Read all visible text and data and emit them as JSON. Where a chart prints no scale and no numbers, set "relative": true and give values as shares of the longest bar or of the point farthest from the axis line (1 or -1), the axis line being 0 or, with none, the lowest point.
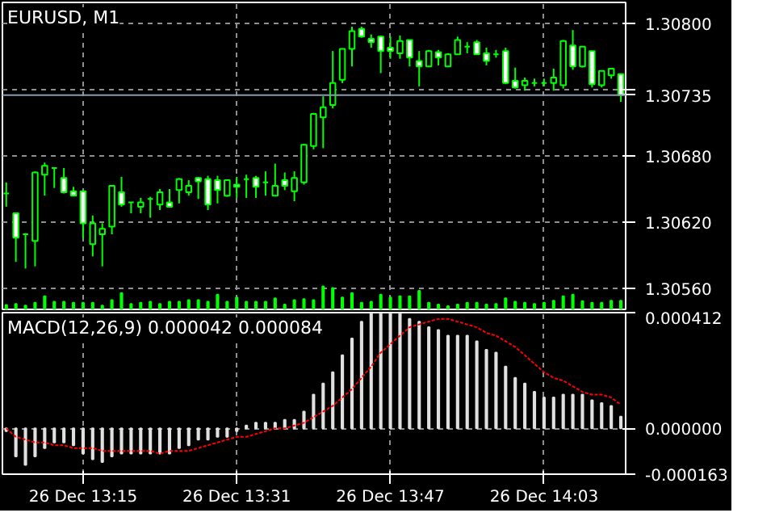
{
  "chart_data": [
    {
      "type": "candlestick",
      "title": "EURUSD, M1",
      "color": "#00ff00",
      "ohlc": [
        [
          1.30646,
          1.30656,
          1.30634,
          1.30646
        ],
        [
          1.30628,
          1.30628,
          1.30584,
          1.30606
        ],
        [
          1.30609,
          1.3061,
          1.30578,
          1.30609
        ],
        [
          1.30603,
          1.30666,
          1.3058,
          1.30665
        ],
        [
          1.30663,
          1.30674,
          1.30644,
          1.30671
        ],
        [
          1.30669,
          1.30669,
          1.30651,
          1.30669
        ],
        [
          1.3066,
          1.30669,
          1.30646,
          1.30647
        ],
        [
          1.30648,
          1.30652,
          1.30644,
          1.30644
        ],
        [
          1.30648,
          1.30649,
          1.30605,
          1.30619
        ],
        [
          1.306,
          1.30626,
          1.30589,
          1.30619
        ],
        [
          1.30609,
          1.30619,
          1.3058,
          1.30614
        ],
        [
          1.30616,
          1.30653,
          1.30609,
          1.30653
        ],
        [
          1.30647,
          1.30661,
          1.30634,
          1.30636
        ],
        [
          1.30638,
          1.30638,
          1.30628,
          1.30638
        ],
        [
          1.30634,
          1.30642,
          1.30628,
          1.30638
        ],
        [
          1.30641,
          1.30643,
          1.30624,
          1.30641
        ],
        [
          1.30636,
          1.3065,
          1.30631,
          1.30647
        ],
        [
          1.30638,
          1.3065,
          1.30634,
          1.30634
        ],
        [
          1.30649,
          1.3066,
          1.30637,
          1.30659
        ],
        [
          1.30647,
          1.30658,
          1.30644,
          1.30653
        ],
        [
          1.3066,
          1.30661,
          1.30641,
          1.30657
        ],
        [
          1.30659,
          1.30662,
          1.30631,
          1.30636
        ],
        [
          1.30658,
          1.30662,
          1.30637,
          1.30649
        ],
        [
          1.30644,
          1.30658,
          1.30643,
          1.30658
        ],
        [
          1.30654,
          1.30661,
          1.30642,
          1.30652
        ],
        [
          1.30659,
          1.30663,
          1.30642,
          1.30659
        ],
        [
          1.3066,
          1.30662,
          1.30642,
          1.30652
        ],
        [
          1.30656,
          1.30666,
          1.30644,
          1.30656
        ],
        [
          1.30644,
          1.30673,
          1.30644,
          1.30653
        ],
        [
          1.30658,
          1.30665,
          1.30649,
          1.30653
        ],
        [
          1.30648,
          1.30666,
          1.30639,
          1.3066
        ],
        [
          1.30656,
          1.30691,
          1.30654,
          1.3069
        ],
        [
          1.30689,
          1.30719,
          1.30686,
          1.30718
        ],
        [
          1.30715,
          1.30734,
          1.30687,
          1.30724
        ],
        [
          1.30726,
          1.30775,
          1.30723,
          1.30746
        ],
        [
          1.30749,
          1.30777,
          1.30746,
          1.30777
        ],
        [
          1.30777,
          1.30797,
          1.30761,
          1.30793
        ],
        [
          1.30795,
          1.30797,
          1.30787,
          1.30788
        ],
        [
          1.30786,
          1.3079,
          1.30778,
          1.30783
        ],
        [
          1.30788,
          1.30789,
          1.30755,
          1.30775
        ],
        [
          1.30778,
          1.30788,
          1.30768,
          1.30775
        ],
        [
          1.30773,
          1.30789,
          1.30768,
          1.30784
        ],
        [
          1.30785,
          1.30785,
          1.30761,
          1.30769
        ],
        [
          1.30766,
          1.30775,
          1.30743,
          1.30761
        ],
        [
          1.30761,
          1.30776,
          1.30761,
          1.30775
        ],
        [
          1.30774,
          1.30776,
          1.30762,
          1.30769
        ],
        [
          1.30761,
          1.30773,
          1.30761,
          1.30772
        ],
        [
          1.30772,
          1.30788,
          1.30772,
          1.30785
        ],
        [
          1.30779,
          1.30783,
          1.30773,
          1.30779
        ],
        [
          1.30783,
          1.30785,
          1.30772,
          1.30772
        ],
        [
          1.30773,
          1.30778,
          1.30762,
          1.30766
        ],
        [
          1.30772,
          1.30776,
          1.30769,
          1.30772
        ],
        [
          1.30775,
          1.30778,
          1.30745,
          1.30746
        ],
        [
          1.30748,
          1.3076,
          1.30741,
          1.30742
        ],
        [
          1.30744,
          1.30751,
          1.30739,
          1.30748
        ],
        [
          1.30746,
          1.3075,
          1.30743,
          1.30746
        ],
        [
          1.30746,
          1.3075,
          1.30743,
          1.30746
        ],
        [
          1.30746,
          1.30759,
          1.30739,
          1.30751
        ],
        [
          1.30744,
          1.30785,
          1.30741,
          1.30784
        ],
        [
          1.3078,
          1.30794,
          1.30758,
          1.30761
        ],
        [
          1.30761,
          1.30779,
          1.3076,
          1.30779
        ],
        [
          1.30775,
          1.30775,
          1.30742,
          1.30745
        ],
        [
          1.30744,
          1.30757,
          1.30742,
          1.30757
        ],
        [
          1.30753,
          1.30759,
          1.3075,
          1.30759
        ],
        [
          1.30754,
          1.30754,
          1.30729,
          1.30735
        ]
      ],
      "ylim": [
        1.30541,
        1.30819
      ],
      "yticks": [
        {
          "value": 1.3056,
          "label": "1.30560"
        },
        {
          "value": 1.3062,
          "label": "1.30620"
        },
        {
          "value": 1.3068,
          "label": "1.30680"
        },
        {
          "value": 1.3074,
          "label": null
        },
        {
          "value": 1.308,
          "label": "1.30800"
        }
      ],
      "ref_lines": [
        {
          "axis": "y",
          "value": 1.30735,
          "label": "1.30735",
          "color": "#8a9ab0"
        }
      ],
      "grid": true,
      "tick_labels": "y"
    },
    {
      "type": "bar",
      "relative": true,
      "color": "#00ff00",
      "values": [
        0.19,
        0.24,
        0.17,
        0.29,
        0.57,
        0.33,
        0.33,
        0.29,
        0.29,
        0.29,
        0.17,
        0.4,
        0.71,
        0.24,
        0.29,
        0.33,
        0.24,
        0.33,
        0.33,
        0.4,
        0.4,
        0.33,
        0.64,
        0.33,
        0.52,
        0.33,
        0.33,
        0.33,
        0.48,
        0.21,
        0.4,
        0.45,
        0.4,
        1,
        0.93,
        0.52,
        0.71,
        0.29,
        0.33,
        0.64,
        0.52,
        0.57,
        0.57,
        0.81,
        0.29,
        0.21,
        0.14,
        0.21,
        0.29,
        0.29,
        0.21,
        0.24,
        0.48,
        0.33,
        0.29,
        0.24,
        0.29,
        0.38,
        0.57,
        0.64,
        0.36,
        0.29,
        0.29,
        0.38,
        0.38
      ]
    },
    {
      "type": "bar",
      "title": "MACD(12,26,9) 0.000042 0.000084",
      "categories": [
        null,
        null,
        null,
        null,
        null,
        null,
        null,
        null,
        "26 Dec 13:15",
        null,
        null,
        null,
        null,
        null,
        null,
        null,
        null,
        null,
        null,
        null,
        null,
        null,
        null,
        null,
        "26 Dec 13:31",
        null,
        null,
        null,
        null,
        null,
        null,
        null,
        null,
        null,
        null,
        null,
        null,
        null,
        null,
        null,
        "26 Dec 13:47",
        null,
        null,
        null,
        null,
        null,
        null,
        null,
        null,
        null,
        null,
        null,
        null,
        null,
        null,
        null,
        "26 Dec 14:03",
        null,
        null,
        null,
        null,
        null,
        null,
        null,
        null
      ],
      "ylim": [
        -0.000163,
        0.000412
      ],
      "yticks": [
        {
          "value": -0.000163,
          "label": "-0.000163"
        },
        {
          "value": 0,
          "label": "0.000000"
        },
        {
          "value": 0.000412,
          "label": "0.000412"
        }
      ],
      "grid": true,
      "series": [
        {
          "type": "bar",
          "color": "#e0e0e0",
          "values": [
            -1e-05,
            -0.0001,
            -0.00013,
            -0.0001,
            -7e-05,
            -5e-05,
            -5e-05,
            -6e-05,
            -9e-05,
            -0.00011,
            -0.00012,
            -0.0001,
            -9e-05,
            -9e-05,
            -9e-05,
            -9e-05,
            -9e-05,
            -9e-05,
            -7e-05,
            -6e-05,
            -4e-05,
            -4e-05,
            -3e-05,
            -3e-05,
            -1e-05,
            1e-05,
            2e-05,
            2e-05,
            2e-05,
            3e-05,
            3e-05,
            6e-05,
            0.00012,
            0.00016,
            0.0002,
            0.00026,
            0.00032,
            0.00038,
            0.00041,
            0.000412,
            0.000412,
            0.00041,
            0.00039,
            0.00038,
            0.00036,
            0.00035,
            0.00033,
            0.00033,
            0.00033,
            0.00031,
            0.00028,
            0.00027,
            0.00022,
            0.00018,
            0.00016,
            0.00013,
            0.00011,
            0.00011,
            0.00012,
            0.00012,
            0.00012,
            0.0001,
            9e-05,
            8e-05,
            4.2e-05
          ]
        },
        {
          "type": "line",
          "color": "#ff0000",
          "line_style": "dotted",
          "values": [
            0,
            -3e-05,
            -4e-05,
            -5e-05,
            -5e-05,
            -6e-05,
            -6e-05,
            -7e-05,
            -7e-05,
            -7e-05,
            -8e-05,
            -8e-05,
            -8e-05,
            -8e-05,
            -8e-05,
            -8e-05,
            -9e-05,
            -8e-05,
            -8e-05,
            -8e-05,
            -7e-05,
            -6e-05,
            -5e-05,
            -4e-05,
            -3e-05,
            -3e-05,
            -2e-05,
            -1e-05,
            0,
            0,
            1e-05,
            2e-05,
            4e-05,
            6e-05,
            8e-05,
            0.00011,
            0.00014,
            0.00018,
            0.00022,
            0.00027,
            0.0003,
            0.00033,
            0.00036,
            0.00037,
            0.00038,
            0.00039,
            0.00039,
            0.00038,
            0.00037,
            0.00036,
            0.00034,
            0.00033,
            0.00031,
            0.00029,
            0.00026,
            0.00023,
            0.0002,
            0.00018,
            0.00017,
            0.00015,
            0.00013,
            0.00012,
            0.00012,
            0.00011,
            8.4e-05
          ]
        }
      ]
    }
  ]
}
